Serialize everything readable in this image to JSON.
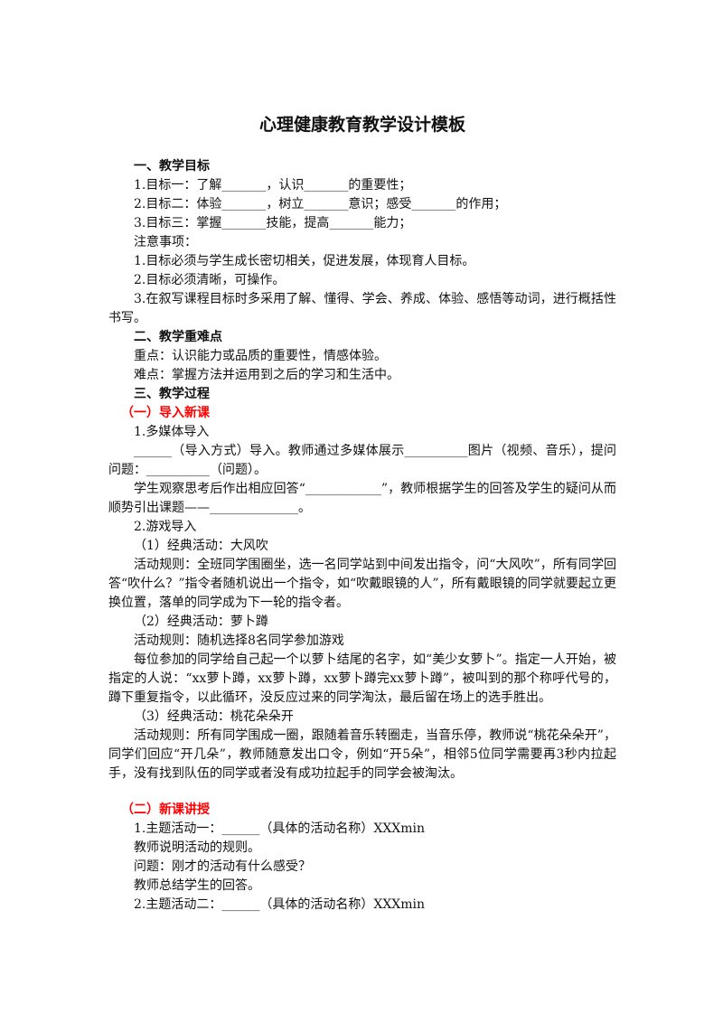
{
  "title": "心理健康教育教学设计模板",
  "blocks": [
    {
      "type": "h",
      "text": "一、教学目标"
    },
    {
      "type": "p",
      "text": "1.目标一：了解_______，认识_______的重要性；"
    },
    {
      "type": "p",
      "text": "2.目标二：体验_______，树立_______意识；感受_______的作用；"
    },
    {
      "type": "p",
      "text": "3.目标三：掌握_______技能，提高_______能力；"
    },
    {
      "type": "p",
      "text": "注意事项："
    },
    {
      "type": "p",
      "text": "1.目标必须与学生成长密切相关，促进发展，体现育人目标。"
    },
    {
      "type": "p",
      "text": "2.目标必须清晰，可操作。"
    },
    {
      "type": "p",
      "text": "3.在叙写课程目标时多采用了解、懂得、学会、养成、体验、感悟等动词，进行概括性书写。"
    },
    {
      "type": "h",
      "text": "二、教学重难点"
    },
    {
      "type": "p",
      "text": "重点：认识能力或品质的重要性，情感体验。"
    },
    {
      "type": "p",
      "text": "难点：掌握方法并运用到之后的学习和生活中。"
    },
    {
      "type": "h",
      "text": "三、教学过程"
    },
    {
      "type": "red",
      "text": "（一）导入新课"
    },
    {
      "type": "p",
      "text": "1.多媒体导入"
    },
    {
      "type": "p",
      "text": "______（导入方式）导入。教师通过多媒体展示__________图片（视频、音乐），提问问题：__________（问题）。"
    },
    {
      "type": "p",
      "text": "学生观察思考后作出相应回答“____________”，教师根据学生的回答及学生的疑问从而顺势引出课题——______________。"
    },
    {
      "type": "p",
      "text": "2.游戏导入"
    },
    {
      "type": "p",
      "text": "（1）经典活动：大风吹"
    },
    {
      "type": "p",
      "text": "活动规则：全班同学围圈坐，选一名同学站到中间发出指令，问“大风吹”，所有同学回答“吹什么？”指令者随机说出一个指令，如“吹戴眼镜的人”，所有戴眼镜的同学就要起立更换位置，落单的同学成为下一轮的指令者。"
    },
    {
      "type": "p",
      "text": "（2）经典活动：萝卜蹲"
    },
    {
      "type": "p",
      "text": "活动规则：随机选择8名同学参加游戏"
    },
    {
      "type": "p",
      "text": "每位参加的同学给自己起一个以萝卜结尾的名字，如“美少女萝卜”。指定一人开始，被指定的人说：“xx萝卜蹲，xx萝卜蹲，xx萝卜蹲完xx萝卜蹲”，被叫到的那个称呼代号的，蹲下重复指令，以此循环，没反应过来的同学淘汰，最后留在场上的选手胜出。"
    },
    {
      "type": "p",
      "text": "（3）经典活动：桃花朵朵开"
    },
    {
      "type": "p",
      "text": "活动规则：所有同学围成一圈，跟随着音乐转圈走，当音乐停，教师说“桃花朵朵开”，同学们回应“开几朵”，教师随意发出口令，例如“开5朵”，相邻5位同学需要再3秒内拉起手，没有找到队伍的同学或者没有成功拉起手的同学会被淘汰。"
    },
    {
      "type": "gap",
      "text": ""
    },
    {
      "type": "red",
      "text": "（二）新课讲授"
    },
    {
      "type": "p",
      "text": "1.主题活动一：______（具体的活动名称）XXXmin"
    },
    {
      "type": "p",
      "text": "教师说明活动的规则。"
    },
    {
      "type": "p",
      "text": "问题：刚才的活动有什么感受？"
    },
    {
      "type": "p",
      "text": "教师总结学生的回答。"
    },
    {
      "type": "p",
      "text": "2.主题活动二：______（具体的活动名称）XXXmin"
    }
  ]
}
